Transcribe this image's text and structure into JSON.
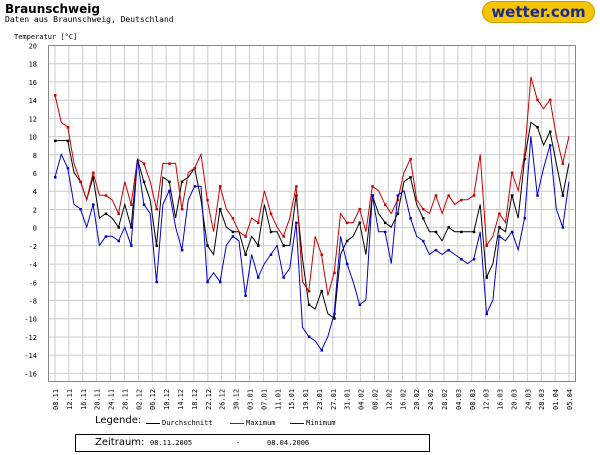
{
  "header": {
    "title": "Braunschweig",
    "subtitle": "Daten aus Braunschweig, Deutschland",
    "brand": "wetter.com"
  },
  "legend": {
    "label": "Legende:",
    "items": [
      "Durchschnitt",
      "Maximum",
      "Minimum"
    ]
  },
  "period": {
    "label": "Zeitraum:",
    "from": "08.11.2005",
    "separator": "-",
    "to": "08.04.2006"
  },
  "colors": {
    "avg": "#000000",
    "max": "#cc0000",
    "min": "#0000cc",
    "grid": "#cccccc",
    "brand_bg": "#f6c400",
    "brand_text": "#1a2a8a"
  },
  "chart_data": {
    "type": "line",
    "ylabel": "Temperatur [°C]",
    "xlabel": "",
    "ylim": [
      -17,
      20
    ],
    "yticks": [
      20,
      18,
      16,
      14,
      12,
      10,
      8,
      6,
      4,
      2,
      0,
      -2,
      -4,
      -6,
      -8,
      -10,
      -12,
      -14,
      -16
    ],
    "grid": true,
    "legend_position": "bottom",
    "x_tick_labels": [
      "08.11",
      "12.11",
      "16.11",
      "20.11",
      "24.11",
      "28.11",
      "02.12",
      "06.12",
      "10.12",
      "14.12",
      "18.12",
      "22.12",
      "26.12",
      "30.12",
      "03.01",
      "07.01",
      "11.01",
      "15.01",
      "19.01",
      "23.01",
      "27.01",
      "31.01",
      "04.02",
      "08.02",
      "12.02",
      "16.02",
      "20.02",
      "24.02",
      "28.02",
      "04.03",
      "08.03",
      "12.03",
      "16.03",
      "20.03",
      "24.03",
      "28.03",
      "01.04",
      "05.04"
    ],
    "series": [
      {
        "name": "Durchschnitt",
        "values": [
          9.5,
          9.5,
          9.5,
          6,
          5,
          3,
          5.5,
          1,
          1.5,
          1,
          0,
          2.5,
          0,
          7.5,
          5,
          3,
          -2,
          5.5,
          5,
          1,
          5,
          5.5,
          6.5,
          3,
          -2,
          -3,
          2,
          0,
          -0.5,
          -0.5,
          -3,
          -1,
          -2,
          2.5,
          -0.5,
          -0.5,
          -2,
          -2,
          3.5,
          -3.5,
          -8.5,
          -9,
          -7,
          -9.5,
          -10,
          -3,
          -1.5,
          -1,
          0.5,
          -3,
          3.5,
          1.5,
          0.5,
          0,
          1.5,
          5,
          5.5,
          2.5,
          1,
          -0.5,
          -0.5,
          -1.5,
          0,
          -0.5,
          -0.5,
          -0.5,
          -0.5,
          2.5,
          -5.5,
          -4,
          0,
          -0.5,
          3.5,
          1,
          7.5,
          11.5,
          11,
          9,
          10.5,
          7,
          3.5,
          7
        ]
      },
      {
        "name": "Maximum",
        "values": [
          14.5,
          11.5,
          11,
          7,
          5,
          3,
          6,
          3.5,
          3.5,
          3,
          1.5,
          5,
          2.5,
          7.5,
          7,
          5,
          2,
          7,
          7,
          7,
          2,
          6,
          6.5,
          8,
          3,
          -0.5,
          4.5,
          2,
          1,
          -0.5,
          -1,
          1,
          0.5,
          4,
          1.5,
          0,
          -1,
          1,
          4.5,
          -6,
          -7,
          -1,
          -3,
          -7.5,
          -5,
          1.5,
          0.5,
          0.5,
          2,
          -0.5,
          4.5,
          4,
          2.5,
          1.5,
          3,
          6,
          7.5,
          3,
          2,
          1.5,
          3.5,
          1.5,
          3.5,
          2.5,
          3,
          3,
          3.5,
          8,
          -2,
          -1,
          1.5,
          0.5,
          6,
          4,
          8,
          16.5,
          14,
          13,
          14,
          10,
          7,
          10
        ]
      },
      {
        "name": "Minimum",
        "values": [
          5.5,
          8,
          6.5,
          2.5,
          2,
          0,
          2.5,
          -2,
          -1,
          -1,
          -1.5,
          0,
          -2,
          7.5,
          2.5,
          1.5,
          -6,
          2.5,
          4,
          0,
          -2.5,
          3,
          4.5,
          4.5,
          -6,
          -5,
          -6,
          -2,
          -1,
          -1.5,
          -7.5,
          -3,
          -5.5,
          -4,
          -3,
          -2,
          -5.5,
          -4.5,
          0.5,
          -11,
          -12,
          -12.5,
          -13.5,
          -12,
          -9.5,
          -1,
          -4,
          -6,
          -8.5,
          -8,
          3.5,
          -0.5,
          -0.5,
          -4,
          3.5,
          4,
          1,
          -1,
          -1.5,
          -3,
          -2.5,
          -3,
          -2.5,
          -3,
          -3.5,
          -4,
          -3.5,
          -0.5,
          -9.5,
          -8,
          -1,
          -1.5,
          -0.5,
          -2.5,
          1,
          10,
          3.5,
          6.5,
          9,
          2,
          0,
          5
        ]
      }
    ]
  }
}
